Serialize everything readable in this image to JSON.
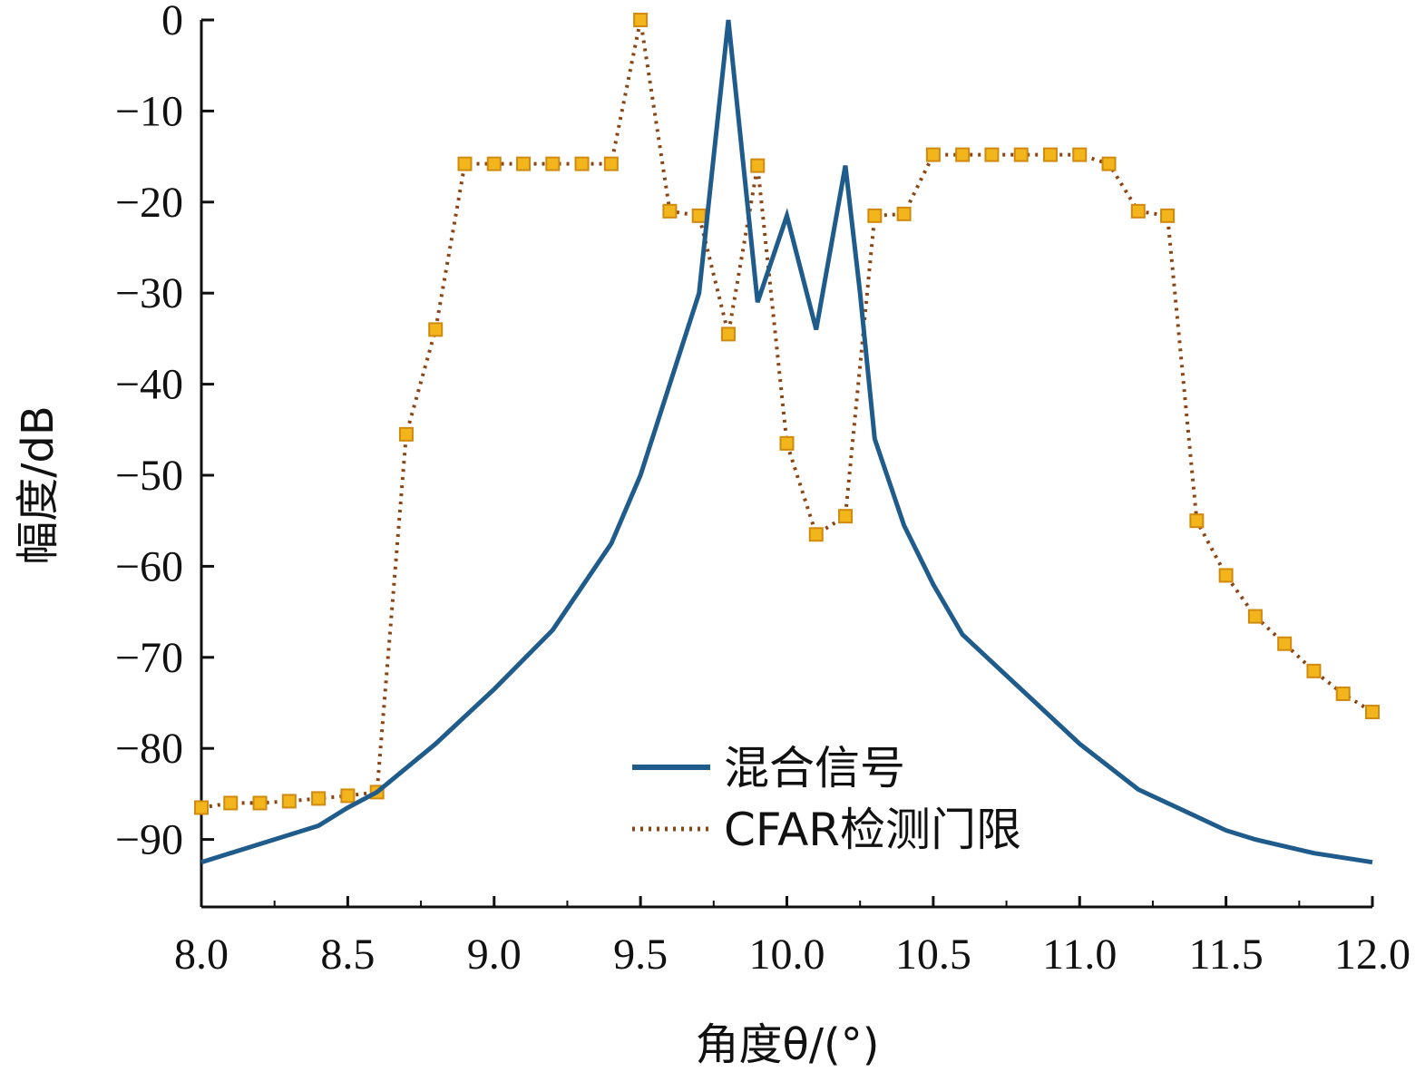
{
  "chart_data": {
    "type": "line",
    "title": "",
    "xlabel": "角度θ/(°)",
    "ylabel": "幅度/dB",
    "xlim": [
      8.0,
      12.0
    ],
    "ylim": [
      -98,
      0
    ],
    "xticks": [
      "8.0",
      "8.5",
      "9.0",
      "9.5",
      "10.0",
      "10.5",
      "11.0",
      "11.5",
      "12.0"
    ],
    "yticks": [
      "0",
      "−10",
      "−20",
      "−30",
      "−40",
      "−50",
      "−60",
      "−70",
      "−80",
      "−90"
    ],
    "grid": false,
    "legend_position": "bottom-center",
    "series": [
      {
        "name": "混合信号",
        "style": "solid",
        "color": "#1f5c8c",
        "x": [
          8.0,
          8.2,
          8.4,
          8.5,
          8.6,
          8.8,
          9.0,
          9.2,
          9.4,
          9.5,
          9.6,
          9.7,
          9.75,
          9.8,
          9.9,
          10.0,
          10.1,
          10.2,
          10.25,
          10.3,
          10.4,
          10.5,
          10.6,
          10.8,
          11.0,
          11.2,
          11.4,
          11.5,
          11.6,
          11.8,
          12.0
        ],
        "y": [
          -92.5,
          -90.5,
          -88.5,
          -86.5,
          -84.8,
          -79.5,
          -73.5,
          -67,
          -57.5,
          -50,
          -40,
          -30,
          -15,
          0,
          -31,
          -21.5,
          -34,
          -16,
          -30,
          -46,
          -55.5,
          -62,
          -67.5,
          -73.5,
          -79.5,
          -84.5,
          -87.5,
          -89,
          -90,
          -91.5,
          -92.5
        ]
      },
      {
        "name": "CFAR检测门限",
        "style": "dotted-with-square-markers",
        "color": "#8b4513",
        "marker_color": "#f2b51c",
        "x": [
          8.0,
          8.1,
          8.2,
          8.3,
          8.4,
          8.5,
          8.6,
          8.7,
          8.8,
          8.9,
          9.0,
          9.1,
          9.2,
          9.3,
          9.4,
          9.5,
          9.6,
          9.7,
          9.8,
          9.9,
          10.0,
          10.1,
          10.2,
          10.3,
          10.4,
          10.5,
          10.6,
          10.7,
          10.8,
          10.9,
          11.0,
          11.1,
          11.2,
          11.3,
          11.4,
          11.5,
          11.6,
          11.7,
          11.8,
          11.9,
          12.0
        ],
        "y": [
          -86.5,
          -86,
          -86,
          -85.8,
          -85.5,
          -85.2,
          -84.8,
          -45.5,
          -34,
          -15.8,
          -15.8,
          -15.8,
          -15.8,
          -15.8,
          -15.8,
          0,
          -21,
          -21.5,
          -34.5,
          -16,
          -46.5,
          -56.5,
          -54.5,
          -21.5,
          -21.3,
          -14.8,
          -14.8,
          -14.8,
          -14.8,
          -14.8,
          -14.8,
          -15.8,
          -21,
          -21.5,
          -55,
          -61,
          -65.5,
          -68.5,
          -71.5,
          -74,
          -76
        ]
      }
    ]
  }
}
